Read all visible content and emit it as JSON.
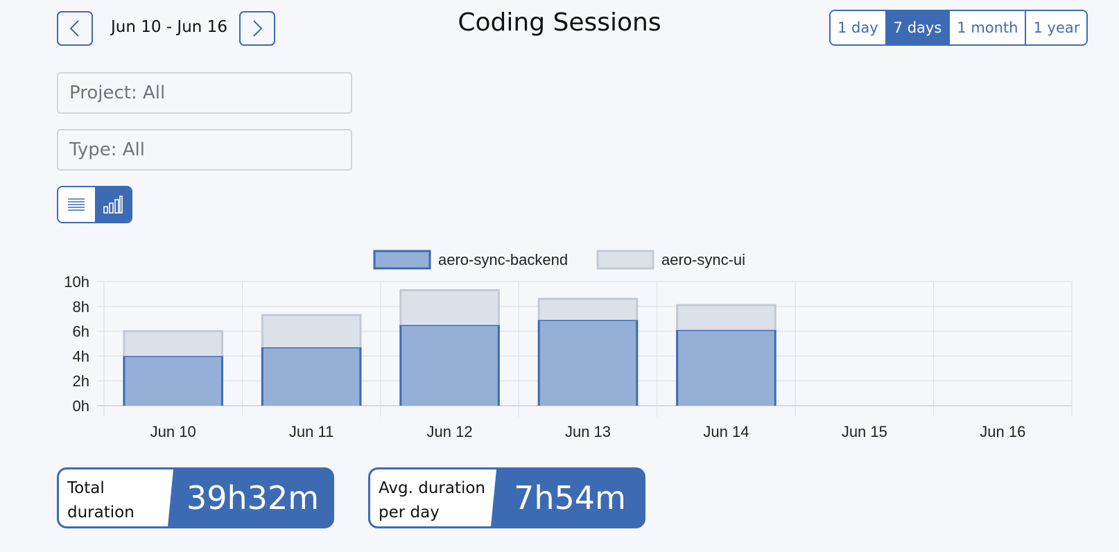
{
  "header": {
    "title": "Coding Sessions",
    "date_range": "Jun 10 - Jun 16",
    "ranges": [
      "1 day",
      "7 days",
      "1 month",
      "1 year"
    ],
    "active_range": "7 days"
  },
  "filters": {
    "project": "Project: All",
    "type": "Type: All"
  },
  "view_toggle": {
    "options": [
      "list-icon",
      "bar-chart-icon"
    ],
    "active": "bar-chart-icon"
  },
  "colors": {
    "accent": "#3d6bb3",
    "backend_fill": "#94b0d7",
    "ui_fill": "#dce0e8",
    "ui_border": "#c2c9d6"
  },
  "chart_data": {
    "type": "bar",
    "stacked": true,
    "categories": [
      "Jun 10",
      "Jun 11",
      "Jun 12",
      "Jun 13",
      "Jun 14",
      "Jun 15",
      "Jun 16"
    ],
    "series": [
      {
        "name": "aero-sync-backend",
        "values": [
          4.0,
          4.7,
          6.5,
          6.9,
          6.1,
          0,
          0
        ]
      },
      {
        "name": "aero-sync-ui",
        "values": [
          2.0,
          2.6,
          2.8,
          1.7,
          2.0,
          0,
          0
        ]
      }
    ],
    "y_ticks": [
      "10h",
      "8h",
      "6h",
      "4h",
      "2h",
      "0h"
    ],
    "ylim": [
      0,
      10
    ],
    "grid": true,
    "legend_position": "top-center"
  },
  "stats": {
    "total_label_1": "Total",
    "total_label_2": "duration",
    "total_value": "39h32m",
    "avg_label_1": "Avg. duration",
    "avg_label_2": "per day",
    "avg_value": "7h54m"
  }
}
